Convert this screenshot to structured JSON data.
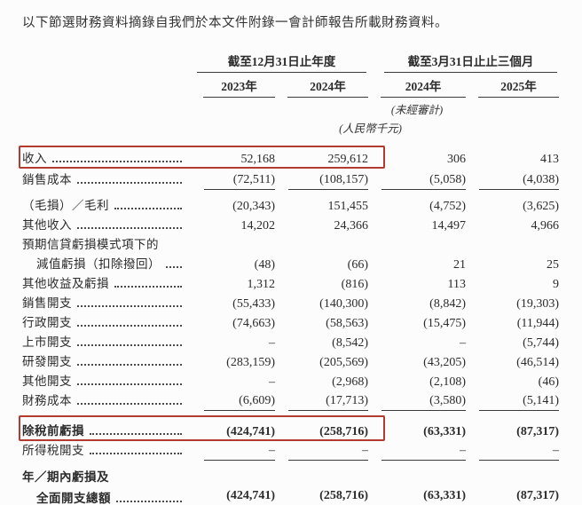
{
  "page": {
    "background": "#fcfcfc",
    "text_color": "#2b2b2b",
    "accent_red": "#b23a2e"
  },
  "intro": "以下節選財務資料摘錄自我們於本文件附錄一會計師報告所載財務資料。",
  "table": {
    "groups": [
      {
        "label": "截至12月31日止年度",
        "years": [
          "2023年",
          "2024年"
        ]
      },
      {
        "label": "截至3月31日止止三個月",
        "years": [
          "2024年",
          "2025年"
        ]
      }
    ],
    "notes": {
      "unaudited": "(未經審計)",
      "currency": "(人民幣千元)"
    },
    "rows": [
      {
        "label": "收入",
        "dots": true,
        "values": [
          "52,168",
          "259,612",
          "306",
          "413"
        ],
        "boxed": true,
        "tall": true
      },
      {
        "label": "銷售成本",
        "dots": true,
        "values": [
          "(72,511)",
          "(108,157)",
          "(5,058)",
          "(4,038)"
        ],
        "rule": "single",
        "tall": true
      },
      {
        "label": "（毛損）／毛利",
        "dots": true,
        "values": [
          "(20,343)",
          "151,455",
          "(4,752)",
          "(3,625)"
        ]
      },
      {
        "label": "其他收入",
        "dots": true,
        "values": [
          "14,202",
          "24,366",
          "14,497",
          "4,966"
        ]
      },
      {
        "label": "預期信貸虧損模式項下的",
        "dots": false,
        "values": [
          "",
          "",
          "",
          ""
        ]
      },
      {
        "label": "減值虧損（扣除撥回）",
        "dots": true,
        "indent": true,
        "values": [
          "(48)",
          "(66)",
          "21",
          "25"
        ]
      },
      {
        "label": "其他收益及虧損",
        "dots": true,
        "values": [
          "1,312",
          "(816)",
          "113",
          "9"
        ]
      },
      {
        "label": "銷售開支",
        "dots": true,
        "values": [
          "(55,433)",
          "(140,300)",
          "(8,842)",
          "(19,303)"
        ]
      },
      {
        "label": "行政開支",
        "dots": true,
        "values": [
          "(74,663)",
          "(58,563)",
          "(15,475)",
          "(11,944)"
        ]
      },
      {
        "label": "上市開支",
        "dots": true,
        "values": [
          "–",
          "(8,542)",
          "–",
          "(5,744)"
        ]
      },
      {
        "label": "研發開支",
        "dots": true,
        "values": [
          "(283,159)",
          "(205,569)",
          "(43,205)",
          "(46,514)"
        ]
      },
      {
        "label": "其他開支",
        "dots": true,
        "values": [
          "–",
          "(2,968)",
          "(2,108)",
          "(46)"
        ]
      },
      {
        "label": "財務成本",
        "dots": true,
        "values": [
          "(6,609)",
          "(17,713)",
          "(3,580)",
          "(5,141)"
        ],
        "rule": "single"
      },
      {
        "label": "除稅前虧損",
        "dots": true,
        "bold": true,
        "values": [
          "(424,741)",
          "(258,716)",
          "(63,331)",
          "(87,317)"
        ],
        "boxed": true,
        "loss": true
      },
      {
        "label": "所得稅開支",
        "dots": true,
        "values": [
          "–",
          "–",
          "–",
          "–"
        ],
        "rule": "single",
        "gap_after": true
      },
      {
        "label": "年／期內虧損及",
        "dots": false,
        "bold": true,
        "values": [
          "",
          "",
          "",
          ""
        ],
        "tall": true
      },
      {
        "label": "全面開支總額",
        "dots": true,
        "bold": true,
        "indent": true,
        "values": [
          "(424,741)",
          "(258,716)",
          "(63,331)",
          "(87,317)"
        ],
        "rule": "double",
        "tall": true
      }
    ]
  }
}
